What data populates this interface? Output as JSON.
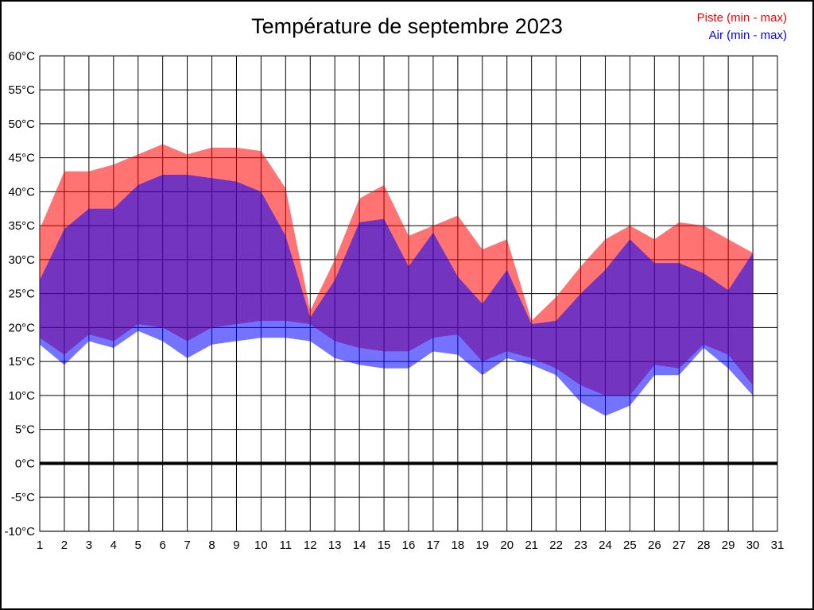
{
  "title": "Température de septembre 2023",
  "legend": {
    "piste_label": "Piste (min - max)",
    "air_label": "Air (min - max)"
  },
  "chart_data": {
    "type": "area",
    "title": "Température de septembre 2023",
    "xlabel": "",
    "ylabel": "",
    "x": [
      1,
      2,
      3,
      4,
      5,
      6,
      7,
      8,
      9,
      10,
      11,
      12,
      13,
      14,
      15,
      16,
      17,
      18,
      19,
      20,
      21,
      22,
      23,
      24,
      25,
      26,
      27,
      28,
      29,
      30
    ],
    "series": [
      {
        "name": "Piste max",
        "color": "#ff0000",
        "values": [
          34.5,
          43,
          43,
          44,
          45.5,
          47,
          45.5,
          46.5,
          46.5,
          46,
          40.5,
          22.5,
          30,
          39,
          41,
          33.5,
          35,
          36.5,
          31.5,
          33,
          21,
          24.5,
          29,
          33,
          35,
          33,
          35.5,
          35,
          33,
          31
        ]
      },
      {
        "name": "Piste min",
        "color": "#ff0000",
        "values": [
          18.5,
          16,
          19,
          18,
          20.5,
          20,
          18,
          20,
          20.5,
          21,
          21,
          20.5,
          18,
          17,
          16.5,
          16.5,
          18.5,
          19,
          15,
          16.5,
          15.5,
          14,
          11.5,
          10,
          10,
          14.5,
          14,
          17.5,
          16,
          11.5
        ]
      },
      {
        "name": "Air max",
        "color": "#0000ff",
        "values": [
          27,
          34.5,
          37.5,
          37.5,
          41,
          42.5,
          42.5,
          42,
          41.5,
          40,
          33.5,
          21.5,
          27,
          35.5,
          36,
          29,
          34,
          27.5,
          23.5,
          28.5,
          20.5,
          21,
          25,
          28.5,
          33,
          29.5,
          29.5,
          28,
          25.5,
          31
        ]
      },
      {
        "name": "Air min",
        "color": "#0000ff",
        "values": [
          17.5,
          14.5,
          18,
          17,
          19.5,
          18,
          15.5,
          17.5,
          18,
          18.5,
          18.5,
          18,
          15.5,
          14.5,
          14,
          14,
          16.5,
          16,
          13,
          15.5,
          14.5,
          13,
          9,
          7,
          8.5,
          13,
          13,
          17,
          14,
          10
        ]
      }
    ],
    "x_ticks": [
      1,
      2,
      3,
      4,
      5,
      6,
      7,
      8,
      9,
      10,
      11,
      12,
      13,
      14,
      15,
      16,
      17,
      18,
      19,
      20,
      21,
      22,
      23,
      24,
      25,
      26,
      27,
      28,
      29,
      30,
      31
    ],
    "y_ticks": [
      "60°C",
      "55°C",
      "50°C",
      "45°C",
      "40°C",
      "35°C",
      "30°C",
      "25°C",
      "20°C",
      "15°C",
      "10°C",
      "5°C",
      "0°C",
      "-5°C",
      "-10°C"
    ],
    "y_tick_values": [
      60,
      55,
      50,
      45,
      40,
      35,
      30,
      25,
      20,
      15,
      10,
      5,
      0,
      -5,
      -10
    ],
    "xlim": [
      1,
      31
    ],
    "ylim": [
      -10,
      60
    ],
    "grid": true,
    "zero_line_width": 4,
    "band_opacity": 0.55,
    "legend_position": "top-right",
    "colors": {
      "piste": "#ff0000",
      "air": "#0000ff",
      "grid": "#000000",
      "text": "#000000"
    }
  }
}
